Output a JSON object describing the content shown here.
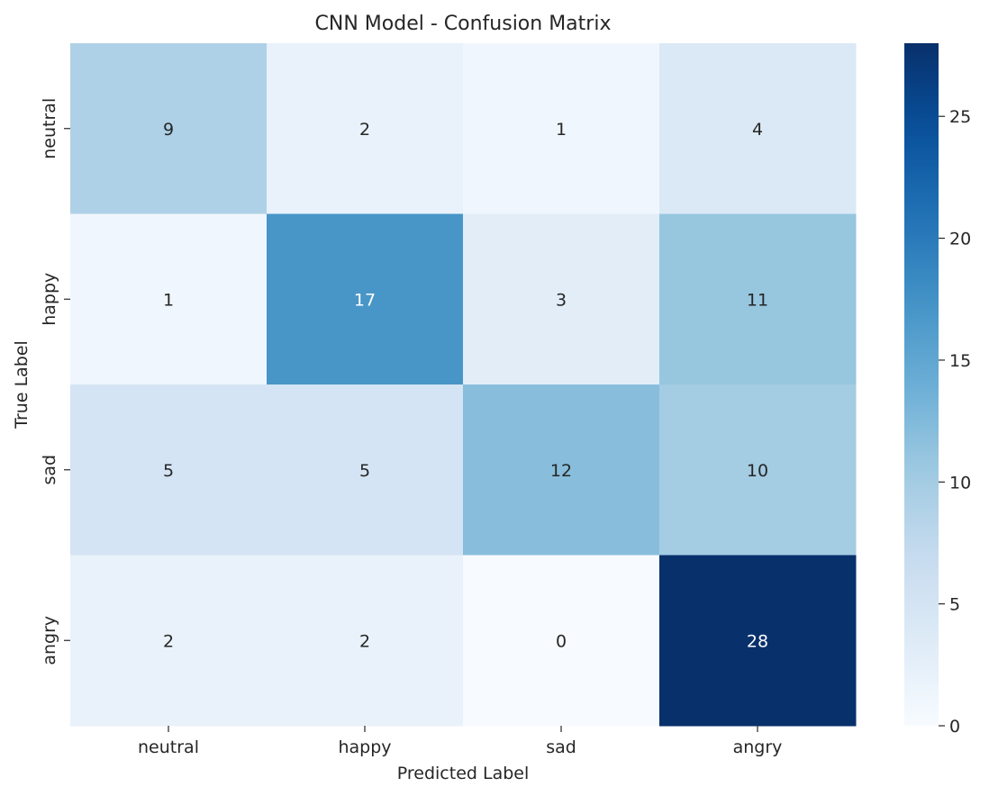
{
  "chart_data": {
    "type": "heatmap",
    "title": "CNN Model - Confusion Matrix",
    "xlabel": "Predicted Label",
    "ylabel": "True Label",
    "x_categories": [
      "neutral",
      "happy",
      "sad",
      "angry"
    ],
    "y_categories": [
      "neutral",
      "happy",
      "sad",
      "angry"
    ],
    "values": [
      [
        9,
        2,
        1,
        4
      ],
      [
        1,
        17,
        3,
        11
      ],
      [
        5,
        5,
        12,
        10
      ],
      [
        2,
        2,
        0,
        28
      ]
    ],
    "colorscale": "Blues",
    "color_range": [
      0,
      28
    ],
    "colorbar_ticks": [
      0,
      5,
      10,
      15,
      20,
      25
    ],
    "colorbar_tick_labels": [
      "0",
      "5",
      "10",
      "15",
      "20",
      "25"
    ]
  }
}
